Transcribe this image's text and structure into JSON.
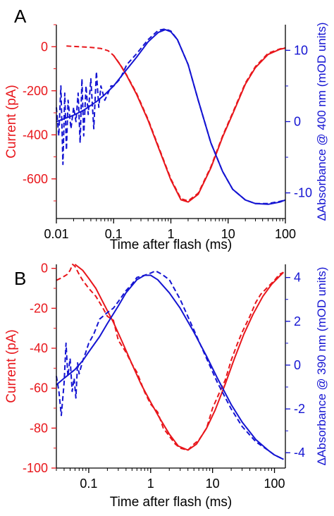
{
  "colors": {
    "left_axis": "#e8161b",
    "right_axis": "#1414d2",
    "axes": "#000000"
  },
  "chart_data": [
    {
      "panel": "A",
      "type": "line",
      "xlabel": "Time after flash (ms)",
      "ylabel_left": "Current (pA)",
      "ylabel_right": "ΔAbsorbance @ 400 nm (mOD units)",
      "xscale": "log",
      "xlim": [
        0.01,
        100
      ],
      "ylim_left": [
        -780,
        100
      ],
      "ylim_right": [
        -13.6,
        13.6
      ],
      "x_ticks": [
        0.01,
        0.1,
        1,
        10,
        100
      ],
      "x_tick_labels": [
        "0.01",
        "0.1",
        "1",
        "10",
        "100"
      ],
      "y_left_ticks": [
        0,
        -200,
        -400,
        -600
      ],
      "y_left_tick_labels": [
        "0",
        "-200",
        "-400",
        "-600"
      ],
      "y_right_ticks": [
        10,
        0,
        -10
      ],
      "y_right_tick_labels": [
        "10",
        "0",
        "-10"
      ],
      "series": [
        {
          "axis": "left",
          "style": "dashed",
          "color": "#e8161b",
          "x": [
            0.015,
            0.025,
            0.04,
            0.06,
            0.08,
            0.1,
            0.13,
            0.17,
            0.25,
            0.4,
            0.6,
            1.0,
            1.5,
            2.0,
            3.0,
            5.0,
            8.0,
            12,
            20,
            30,
            50,
            80,
            100
          ],
          "y": [
            3,
            0,
            -3,
            -8,
            -18,
            -40,
            -80,
            -130,
            -210,
            -330,
            -450,
            -600,
            -690,
            -700,
            -665,
            -545,
            -405,
            -300,
            -165,
            -90,
            -30,
            -10,
            -5
          ]
        },
        {
          "axis": "left",
          "style": "solid",
          "color": "#e8161b",
          "x": [
            0.1,
            0.13,
            0.17,
            0.25,
            0.4,
            0.6,
            1.0,
            1.5,
            2.0,
            3.0,
            5.0,
            8.0,
            12,
            20,
            30,
            50,
            80,
            100
          ],
          "y": [
            -40,
            -82,
            -132,
            -215,
            -335,
            -455,
            -605,
            -695,
            -705,
            -670,
            -550,
            -410,
            -305,
            -170,
            -95,
            -35,
            -12,
            -6
          ]
        },
        {
          "axis": "right",
          "style": "dashed",
          "color": "#1414d2",
          "x": [
            0.01,
            0.011,
            0.012,
            0.013,
            0.014,
            0.015,
            0.016,
            0.018,
            0.02,
            0.022,
            0.024,
            0.026,
            0.028,
            0.03,
            0.033,
            0.036,
            0.04,
            0.045,
            0.05,
            0.055,
            0.06,
            0.07,
            0.08,
            0.09,
            0.1,
            0.13,
            0.17,
            0.25,
            0.4,
            0.6,
            0.8,
            1.0,
            1.3,
            2.0,
            3.0,
            5.0,
            8.0,
            12,
            20,
            30,
            50,
            80,
            100
          ],
          "y": [
            2,
            -2,
            5,
            -6,
            4,
            -4,
            3,
            -1,
            2,
            0,
            4,
            -3,
            6,
            -2,
            5,
            1,
            6,
            -1,
            7,
            2,
            5,
            3,
            4,
            5,
            5,
            6,
            8,
            9.5,
            11.5,
            12.8,
            13,
            12.7,
            11.5,
            8,
            3,
            -3,
            -7,
            -9.5,
            -11,
            -11.5,
            -11.5,
            -11.2,
            -11
          ]
        },
        {
          "axis": "right",
          "style": "solid",
          "color": "#1414d2",
          "x": [
            0.01,
            0.02,
            0.03,
            0.05,
            0.07,
            0.1,
            0.15,
            0.25,
            0.4,
            0.6,
            0.8,
            1.0,
            1.3,
            2.0,
            3.0,
            5.0,
            8.0,
            12,
            20,
            30,
            50,
            80,
            100
          ],
          "y": [
            0,
            0.9,
            1.6,
            2.8,
            3.8,
            5,
            6.8,
            9,
            11.2,
            12.5,
            12.9,
            12.6,
            11.5,
            8,
            3,
            -3,
            -7,
            -9.5,
            -11,
            -11.5,
            -11.6,
            -11.3,
            -11
          ]
        }
      ]
    },
    {
      "panel": "B",
      "type": "line",
      "xlabel": "Time after flash (ms)",
      "ylabel_left": "Current (pA)",
      "ylabel_right": "ΔAbsorbance @ 390 nm (mOD units)",
      "xscale": "log",
      "xlim": [
        0.03,
        150
      ],
      "ylim_left": [
        -100,
        2
      ],
      "ylim_right": [
        -4.7,
        4.6
      ],
      "x_ticks": [
        0.1,
        1,
        10,
        100
      ],
      "x_tick_labels": [
        "0.1",
        "1",
        "10",
        "100"
      ],
      "y_left_ticks": [
        0,
        -20,
        -40,
        -60,
        -80,
        -100
      ],
      "y_left_tick_labels": [
        "0",
        "-20",
        "-40",
        "-60",
        "-80",
        "-100"
      ],
      "y_right_ticks": [
        4,
        2,
        0,
        -2,
        -4
      ],
      "y_right_tick_labels": [
        "4",
        "2",
        "0",
        "-2",
        "-4"
      ],
      "series": [
        {
          "axis": "left",
          "style": "dashed",
          "color": "#e8161b",
          "x": [
            0.03,
            0.035,
            0.04,
            0.045,
            0.05,
            0.055,
            0.06,
            0.07,
            0.08,
            0.1,
            0.13,
            0.17,
            0.2,
            0.25,
            0.3,
            0.4,
            0.5,
            0.6,
            0.8,
            1.0,
            1.3,
            1.6,
            2.0,
            2.5,
            3.0,
            4.0,
            5.0,
            6.0,
            8.0,
            10,
            13,
            16,
            20,
            25,
            30,
            40,
            50,
            60,
            80,
            100,
            120,
            140
          ],
          "y": [
            -6,
            -5,
            -4,
            -3,
            -1,
            2,
            1,
            -3,
            -6,
            -10,
            -14,
            -20,
            -24,
            -26,
            -36,
            -42,
            -48,
            -52,
            -62,
            -68,
            -72,
            -80,
            -84,
            -88,
            -90,
            -91,
            -88,
            -86,
            -80,
            -70,
            -62,
            -56,
            -46,
            -38,
            -32,
            -24,
            -17,
            -13,
            -9,
            -6,
            -3,
            -2
          ]
        },
        {
          "axis": "left",
          "style": "solid",
          "color": "#e8161b",
          "x": [
            0.06,
            0.08,
            0.1,
            0.13,
            0.17,
            0.25,
            0.35,
            0.5,
            0.7,
            1.0,
            1.4,
            2.0,
            2.8,
            4.0,
            5.5,
            8.0,
            11,
            16,
            22,
            32,
            45,
            65,
            90,
            120,
            140
          ],
          "y": [
            2,
            -1,
            -5,
            -10,
            -17,
            -27,
            -37,
            -48,
            -58,
            -67,
            -75,
            -83,
            -89,
            -91,
            -88,
            -80,
            -71,
            -58,
            -46,
            -33,
            -23,
            -14,
            -8,
            -4,
            -2
          ]
        },
        {
          "axis": "right",
          "style": "dashed",
          "color": "#1414d2",
          "x": [
            0.03,
            0.033,
            0.036,
            0.04,
            0.043,
            0.046,
            0.05,
            0.054,
            0.058,
            0.062,
            0.066,
            0.07,
            0.08,
            0.09,
            0.1,
            0.12,
            0.15,
            0.2,
            0.25,
            0.3,
            0.4,
            0.5,
            0.6,
            0.8,
            1.0,
            1.2,
            1.4,
            1.6,
            2.0,
            3.0,
            5.0,
            8.0,
            12,
            20,
            30,
            50,
            80,
            100,
            140
          ],
          "y": [
            -0.5,
            -1.2,
            -2.3,
            -0.8,
            1.0,
            -0.5,
            0.3,
            -1.2,
            -0.6,
            -1.5,
            0.1,
            -0.4,
            0.2,
            0.6,
            1.0,
            1.4,
            2.1,
            2.4,
            2.6,
            2.9,
            3.4,
            3.7,
            4.0,
            4.1,
            4.2,
            4.3,
            4.2,
            4.1,
            3.9,
            3.0,
            1.6,
            0.3,
            -0.8,
            -2.0,
            -2.8,
            -3.5,
            -3.9,
            -4.1,
            -4.3
          ]
        },
        {
          "axis": "right",
          "style": "solid",
          "color": "#1414d2",
          "x": [
            0.03,
            0.04,
            0.06,
            0.08,
            0.1,
            0.15,
            0.2,
            0.3,
            0.4,
            0.6,
            0.8,
            1.0,
            1.3,
            2.0,
            3.0,
            5.0,
            8.0,
            12,
            20,
            30,
            50,
            80,
            100,
            140
          ],
          "y": [
            -0.9,
            -0.6,
            -0.2,
            0.2,
            0.6,
            1.3,
            1.9,
            2.7,
            3.3,
            3.9,
            4.1,
            4.1,
            3.9,
            3.3,
            2.6,
            1.5,
            0.4,
            -0.6,
            -1.8,
            -2.6,
            -3.4,
            -3.9,
            -4.1,
            -4.3
          ]
        }
      ]
    }
  ]
}
